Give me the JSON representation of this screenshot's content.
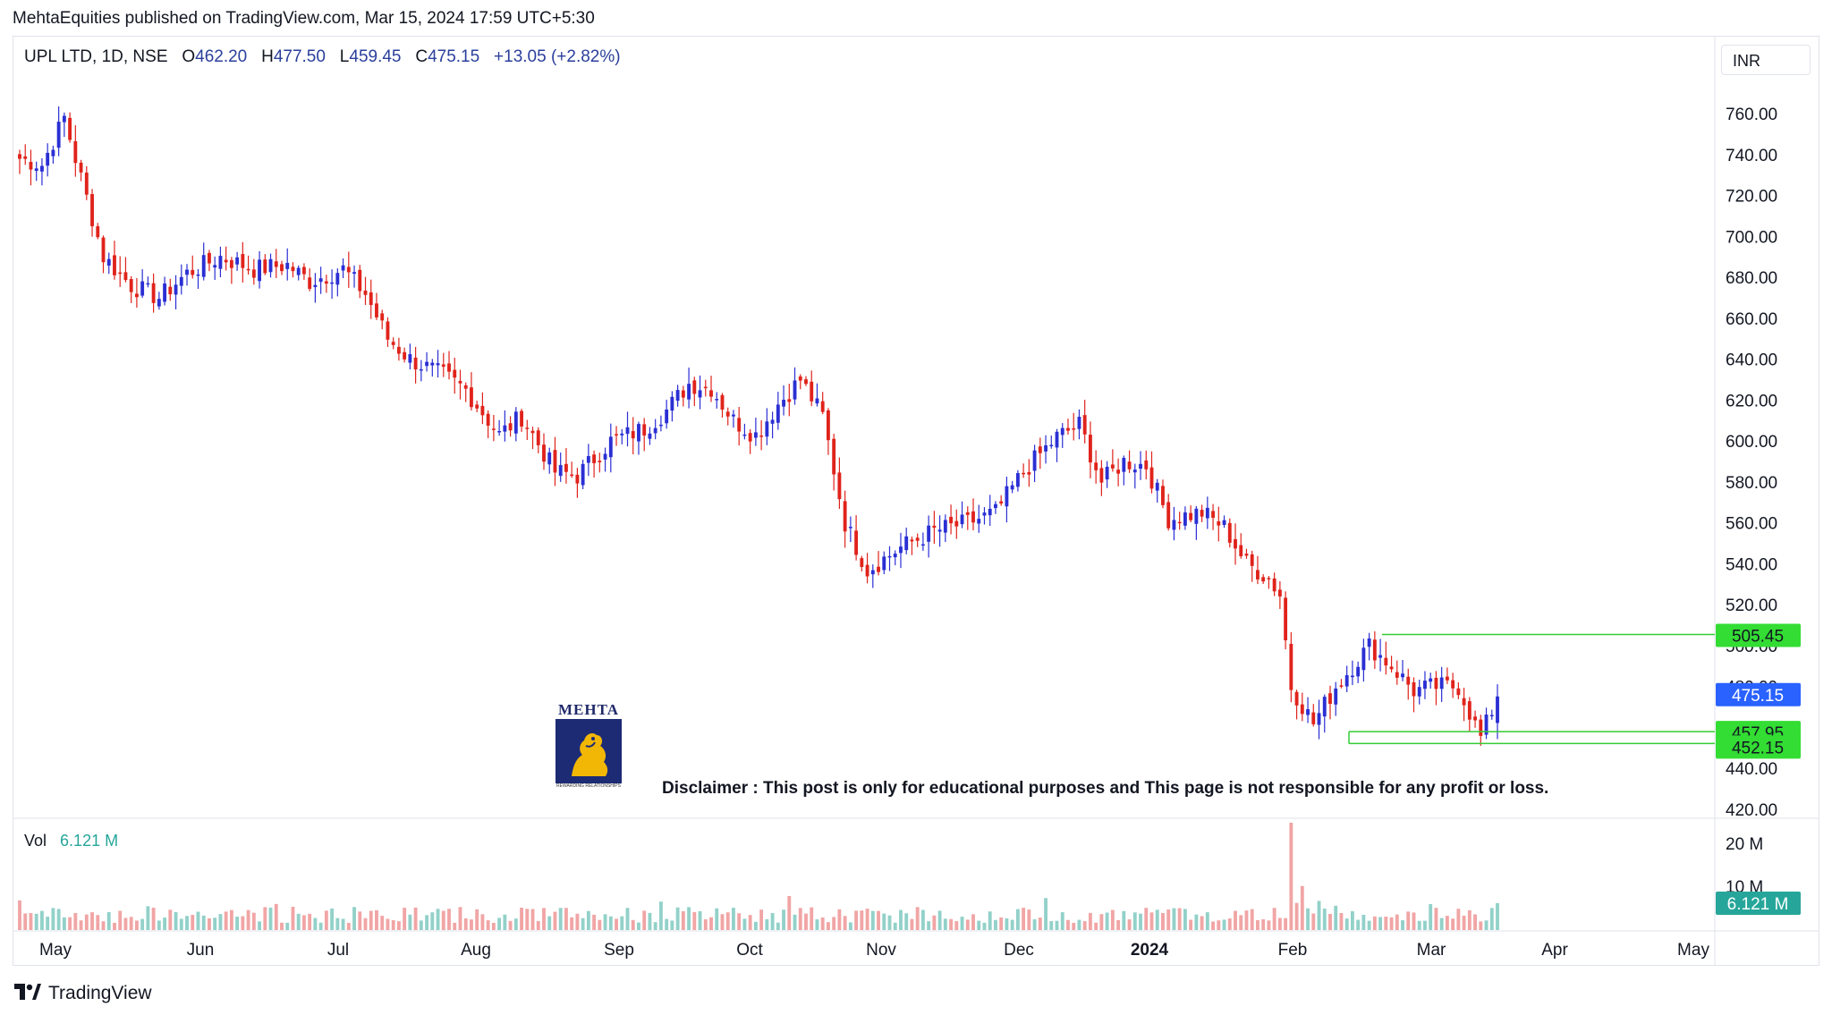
{
  "header": {
    "published": "MehtaEquities published on TradingView.com, Mar 15, 2024 17:59 UTC+5:30"
  },
  "legend": {
    "symbol": "UPL LTD, 1D, NSE",
    "o_label": "O",
    "open": "462.20",
    "h_label": "H",
    "high": "477.50",
    "l_label": "L",
    "low": "459.45",
    "c_label": "C",
    "close": "475.15",
    "change": "+13.05 (+2.82%)"
  },
  "currency": "INR",
  "volume": {
    "label": "Vol",
    "value": "6.121 M"
  },
  "disclaimer": "Disclaimer : This post is only for educational purposes and This page is not responsible for any profit or loss.",
  "logo": {
    "name": "MEHTA",
    "tagline": "REWARDING RELATIONSHIPS"
  },
  "footer": {
    "brand": "TradingView"
  },
  "colors": {
    "up": "#2a2fd4",
    "down": "#e0231b",
    "vol_up": "#92d1c9",
    "vol_down": "#f1a5a5",
    "level_line": "#33cc33",
    "level_label": "#33dd33",
    "price_label": "#2962ff",
    "vol_label": "#26a69a"
  },
  "chart_data": {
    "type": "candlestick",
    "title": "UPL LTD, 1D, NSE",
    "ylim": [
      410,
      775
    ],
    "y_ticks": [
      "760.00",
      "740.00",
      "720.00",
      "700.00",
      "680.00",
      "660.00",
      "640.00",
      "620.00",
      "600.00",
      "580.00",
      "560.00",
      "540.00",
      "520.00",
      "500.00",
      "480.00",
      "460.00",
      "440.00",
      "420.00"
    ],
    "x_ticks": [
      "May",
      "Jun",
      "Jul",
      "Aug",
      "Sep",
      "Oct",
      "Nov",
      "Dec",
      "2024",
      "Feb",
      "Mar",
      "Apr",
      "May"
    ],
    "vol_ticks": [
      "20 M",
      "10 M"
    ],
    "levels": [
      {
        "value": 505.45,
        "label": "505.45",
        "from": "Feb"
      },
      {
        "value": 457.95,
        "label": "457.95",
        "from": "Feb"
      },
      {
        "value": 452.15,
        "label": "452.15",
        "from": "Feb"
      }
    ],
    "last_price": {
      "value": 475.15,
      "label": "475.15"
    },
    "last_volume": {
      "label": "6.121 M"
    },
    "series": [
      {
        "name": "close",
        "key_points": [
          [
            0,
            738
          ],
          [
            4,
            735
          ],
          [
            8,
            758
          ],
          [
            10,
            738
          ],
          [
            15,
            690
          ],
          [
            20,
            676
          ],
          [
            25,
            670
          ],
          [
            30,
            682
          ],
          [
            36,
            690
          ],
          [
            42,
            684
          ],
          [
            48,
            686
          ],
          [
            52,
            678
          ],
          [
            58,
            684
          ],
          [
            62,
            672
          ],
          [
            66,
            650
          ],
          [
            70,
            640
          ],
          [
            76,
            632
          ],
          [
            80,
            625
          ],
          [
            86,
            603
          ],
          [
            90,
            612
          ],
          [
            96,
            585
          ],
          [
            100,
            583
          ],
          [
            106,
            600
          ],
          [
            112,
            606
          ],
          [
            116,
            615
          ],
          [
            120,
            628
          ],
          [
            124,
            626
          ],
          [
            128,
            610
          ],
          [
            132,
            603
          ],
          [
            136,
            618
          ],
          [
            140,
            630
          ],
          [
            144,
            612
          ],
          [
            148,
            560
          ],
          [
            152,
            537
          ],
          [
            158,
            548
          ],
          [
            164,
            556
          ],
          [
            170,
            560
          ],
          [
            175,
            565
          ],
          [
            180,
            585
          ],
          [
            186,
            602
          ],
          [
            190,
            608
          ],
          [
            194,
            580
          ],
          [
            198,
            590
          ],
          [
            202,
            588
          ],
          [
            206,
            562
          ],
          [
            212,
            565
          ],
          [
            216,
            558
          ],
          [
            220,
            540
          ],
          [
            224,
            533
          ],
          [
            226,
            525
          ],
          [
            228,
            480
          ],
          [
            232,
            462
          ],
          [
            236,
            480
          ],
          [
            242,
            500
          ],
          [
            246,
            490
          ],
          [
            250,
            478
          ],
          [
            254,
            480
          ],
          [
            258,
            480
          ],
          [
            262,
            455
          ],
          [
            265,
            475
          ]
        ]
      }
    ]
  }
}
